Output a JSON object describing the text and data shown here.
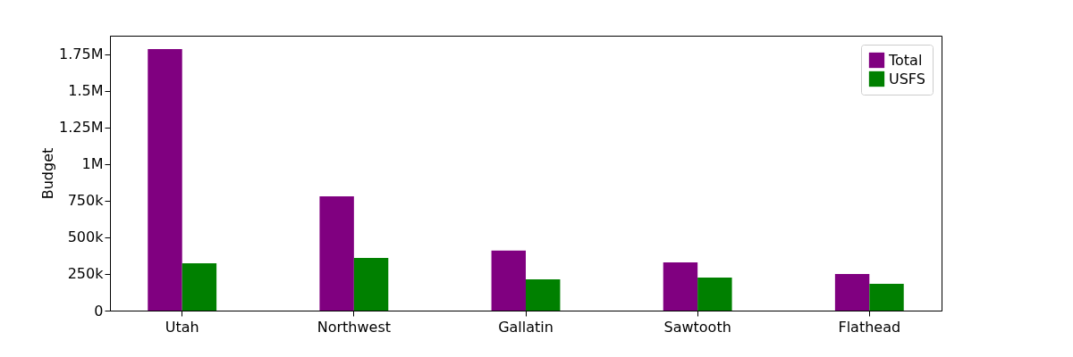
{
  "chart_data": {
    "type": "bar",
    "ylabel": "Budget",
    "categories": [
      "Utah",
      "Northwest",
      "Gallatin",
      "Sawtooth",
      "Flathead"
    ],
    "series": [
      {
        "name": "Total",
        "color": "#800080",
        "values": [
          1786000,
          780000,
          410000,
          330000,
          250000
        ]
      },
      {
        "name": "USFS",
        "color": "#008000",
        "values": [
          323000,
          360000,
          213000,
          226000,
          183000
        ]
      }
    ],
    "ylim": [
      0,
      1878000
    ],
    "yticks": [
      0,
      {
        "value": 250000,
        "label": "250k"
      },
      {
        "value": 500000,
        "label": "500k"
      },
      {
        "value": 750000,
        "label": "750k"
      },
      {
        "value": 1000000,
        "label": "1M"
      },
      {
        "value": 1250000,
        "label": "1.25M"
      },
      {
        "value": 1500000,
        "label": "1.5M"
      },
      {
        "value": 1750000,
        "label": "1.75M"
      }
    ],
    "grid": false,
    "legend": "top right"
  }
}
